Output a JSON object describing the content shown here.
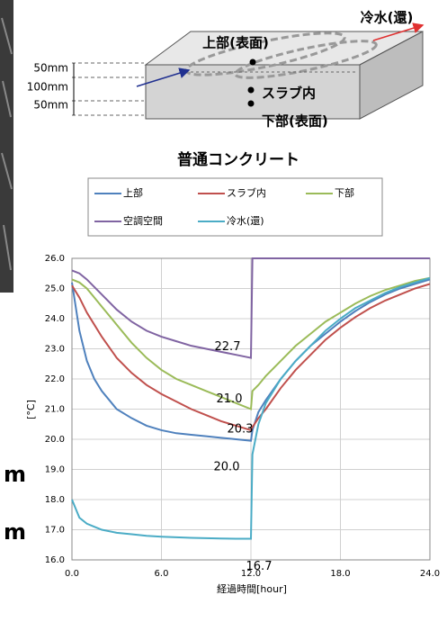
{
  "diagram": {
    "labels": {
      "outlet": "冷水(還)",
      "top": "上部(表面)",
      "inside": "スラブ内",
      "bottom": "下部(表面)",
      "d1": "50mm",
      "d2": "100mm",
      "d3": "50mm"
    },
    "cropped_text": [
      "m",
      "m"
    ]
  },
  "chart_data": {
    "type": "line",
    "title": "普通コンクリート",
    "xlabel": "経過時間[hour]",
    "ylabel": "[°C]",
    "x": [
      0,
      0.5,
      1,
      1.5,
      2,
      3,
      4,
      5,
      6,
      7,
      8,
      9,
      10,
      11,
      12,
      12.1,
      12.5,
      13,
      14,
      15,
      16,
      17,
      18,
      19,
      20,
      21,
      22,
      23,
      24
    ],
    "series": [
      {
        "name": "上部",
        "color": "#4f81bd",
        "values": [
          25.2,
          23.6,
          22.6,
          22.0,
          21.6,
          21.0,
          20.7,
          20.45,
          20.3,
          20.2,
          20.15,
          20.1,
          20.05,
          20.0,
          19.95,
          20.3,
          20.9,
          21.3,
          22.0,
          22.6,
          23.1,
          23.5,
          23.9,
          24.25,
          24.55,
          24.8,
          25.0,
          25.15,
          25.3
        ]
      },
      {
        "name": "スラブ内",
        "color": "#c0504d",
        "values": [
          25.1,
          24.7,
          24.2,
          23.8,
          23.4,
          22.7,
          22.2,
          21.8,
          21.5,
          21.25,
          21.0,
          20.8,
          20.6,
          20.45,
          20.3,
          20.4,
          20.7,
          21.0,
          21.7,
          22.3,
          22.8,
          23.3,
          23.7,
          24.05,
          24.35,
          24.6,
          24.8,
          25.0,
          25.15
        ]
      },
      {
        "name": "下部",
        "color": "#9bbb59",
        "values": [
          25.3,
          25.2,
          25.0,
          24.7,
          24.4,
          23.8,
          23.2,
          22.7,
          22.3,
          22.0,
          21.8,
          21.6,
          21.4,
          21.2,
          21.0,
          21.6,
          21.8,
          22.1,
          22.6,
          23.1,
          23.5,
          23.9,
          24.2,
          24.5,
          24.75,
          24.95,
          25.1,
          25.25,
          25.35
        ]
      },
      {
        "name": "空調空間",
        "color": "#8064a2",
        "values": [
          25.6,
          25.5,
          25.3,
          25.05,
          24.8,
          24.3,
          23.9,
          23.6,
          23.4,
          23.25,
          23.1,
          23.0,
          22.9,
          22.8,
          22.7,
          26,
          26,
          26,
          26,
          26,
          26,
          26,
          26,
          26,
          26,
          26,
          26,
          26,
          26
        ]
      },
      {
        "name": "冷水(還)",
        "color": "#4bacc6",
        "values": [
          18.0,
          17.4,
          17.2,
          17.1,
          17.0,
          16.9,
          16.85,
          16.8,
          16.77,
          16.75,
          16.73,
          16.72,
          16.71,
          16.7,
          16.7,
          19.5,
          20.5,
          21.2,
          22.0,
          22.6,
          23.1,
          23.6,
          24.0,
          24.35,
          24.6,
          24.85,
          25.05,
          25.2,
          25.35
        ]
      }
    ],
    "annotations": [
      {
        "x": 12,
        "y": 22.7,
        "label": "22.7"
      },
      {
        "x": 12,
        "y": 21.0,
        "label": "21.0"
      },
      {
        "x": 12,
        "y": 20.3,
        "label": "20.3"
      },
      {
        "x": 12,
        "y": 20.0,
        "label": "20.0"
      },
      {
        "x": 12,
        "y": 16.7,
        "label": "16.7"
      }
    ],
    "xlim": [
      0,
      24
    ],
    "xticks": [
      {
        "value": 0,
        "label": "0.0"
      },
      {
        "value": 6,
        "label": "6.0"
      },
      {
        "value": 12,
        "label": "12.0"
      },
      {
        "value": 18,
        "label": "18.0"
      },
      {
        "value": 24,
        "label": "24.0"
      }
    ],
    "ylim": [
      16,
      26
    ],
    "yticks": [
      {
        "value": 16,
        "label": "16.0"
      },
      {
        "value": 17,
        "label": "17.0"
      },
      {
        "value": 18,
        "label": "18.0"
      },
      {
        "value": 19,
        "label": "19.0"
      },
      {
        "value": 20,
        "label": "20.0"
      },
      {
        "value": 21,
        "label": "21.0"
      },
      {
        "value": 22,
        "label": "22.0"
      },
      {
        "value": 23,
        "label": "23.0"
      },
      {
        "value": 24,
        "label": "24.0"
      },
      {
        "value": 25,
        "label": "25.0"
      },
      {
        "value": 26,
        "label": "26.0"
      }
    ],
    "grid": true,
    "legend": "top"
  }
}
